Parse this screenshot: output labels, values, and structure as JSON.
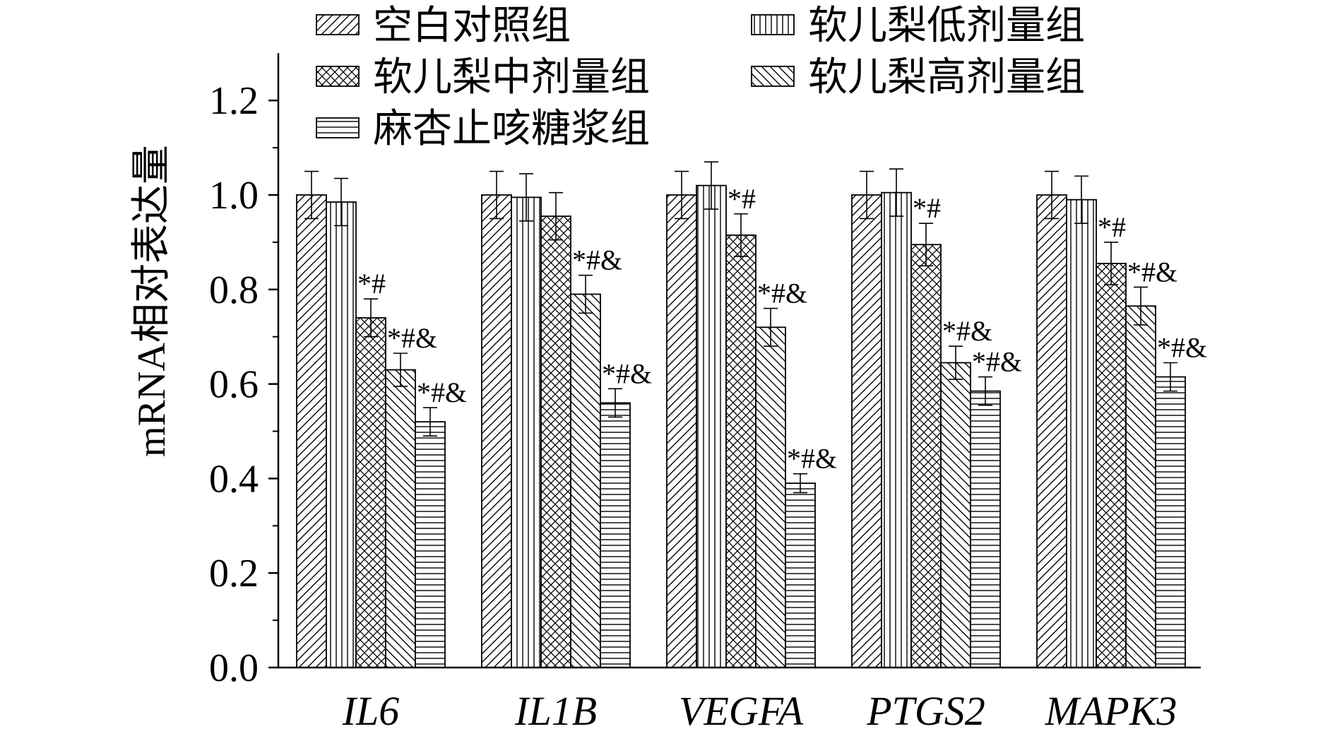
{
  "chart_data": {
    "type": "bar",
    "ylabel": "mRNA相对表达量",
    "ylim": [
      0,
      1.3
    ],
    "yticks": [
      "0.0",
      "0.2",
      "0.4",
      "0.6",
      "0.8",
      "1.0",
      "1.2"
    ],
    "categories": [
      "IL6",
      "IL1B",
      "VEGFA",
      "PTGS2",
      "MAPK3"
    ],
    "legend_position": "top",
    "grid": false,
    "series": [
      {
        "name": "空白对照组",
        "pattern": "diagonal-forward",
        "values": [
          1.0,
          1.0,
          1.0,
          1.0,
          1.0
        ],
        "errors": [
          0.05,
          0.05,
          0.05,
          0.05,
          0.05
        ],
        "annotations": [
          "",
          "",
          "",
          "",
          ""
        ]
      },
      {
        "name": "软儿梨低剂量组",
        "pattern": "vertical-lines",
        "values": [
          0.985,
          0.995,
          1.02,
          1.005,
          0.99
        ],
        "errors": [
          0.05,
          0.05,
          0.05,
          0.05,
          0.05
        ],
        "annotations": [
          "",
          "",
          "",
          "",
          ""
        ]
      },
      {
        "name": "软儿梨中剂量组",
        "pattern": "crosshatch",
        "values": [
          0.74,
          0.955,
          0.915,
          0.895,
          0.855
        ],
        "errors": [
          0.04,
          0.05,
          0.045,
          0.045,
          0.045
        ],
        "annotations": [
          "*#",
          "",
          "*#",
          "*#",
          "*#"
        ]
      },
      {
        "name": "软儿梨高剂量组",
        "pattern": "diagonal-backward",
        "values": [
          0.63,
          0.79,
          0.72,
          0.645,
          0.765
        ],
        "errors": [
          0.035,
          0.04,
          0.04,
          0.035,
          0.04
        ],
        "annotations": [
          "*#&",
          "*#&",
          "*#&",
          "*#&",
          "*#&"
        ]
      },
      {
        "name": "麻杏止咳糖浆组",
        "pattern": "horizontal-lines",
        "values": [
          0.52,
          0.56,
          0.39,
          0.585,
          0.615
        ],
        "errors": [
          0.03,
          0.03,
          0.02,
          0.03,
          0.03
        ],
        "annotations": [
          "*#&",
          "*#&",
          "*#&",
          "*#&",
          "*#&"
        ]
      }
    ]
  }
}
